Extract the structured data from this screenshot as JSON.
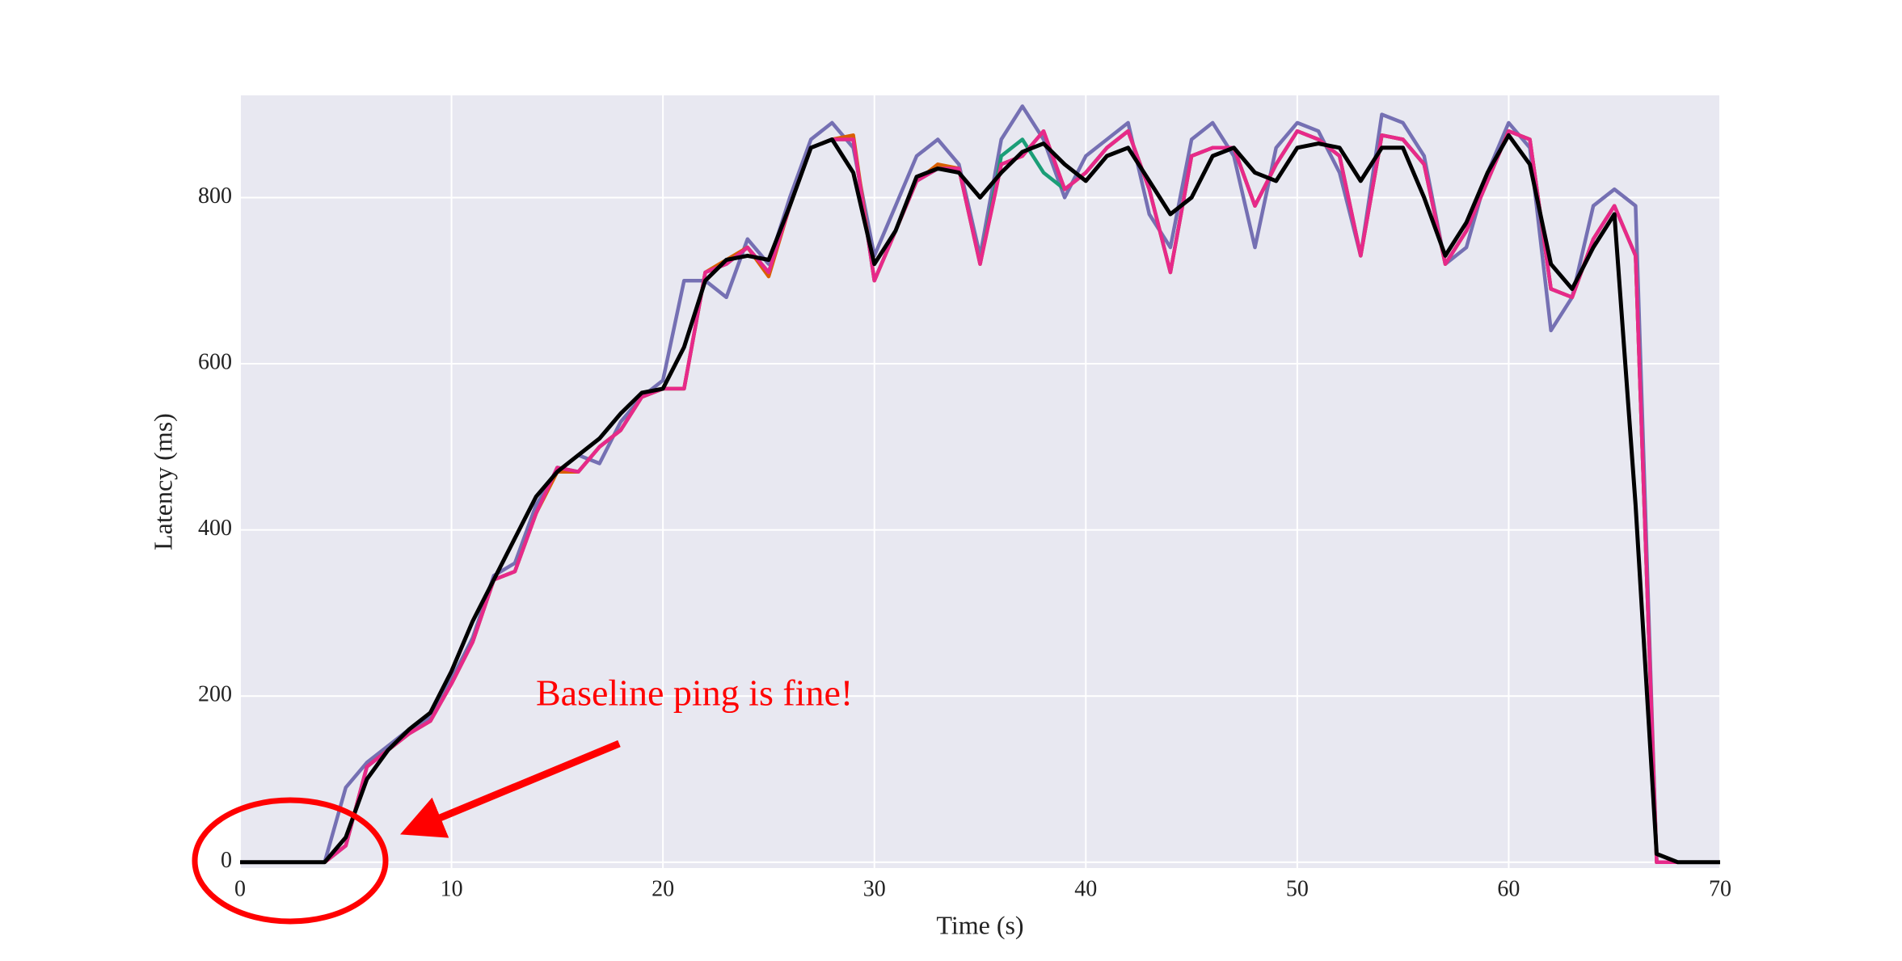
{
  "chart_data": {
    "type": "line",
    "xlabel": "Time (s)",
    "ylabel": "Latency (ms)",
    "annotation": "Baseline ping is fine!",
    "x": [
      0,
      1,
      2,
      3,
      4,
      5,
      6,
      7,
      8,
      9,
      10,
      11,
      12,
      13,
      14,
      15,
      16,
      17,
      18,
      19,
      20,
      21,
      22,
      23,
      24,
      25,
      26,
      27,
      28,
      29,
      30,
      31,
      32,
      33,
      34,
      35,
      36,
      37,
      38,
      39,
      40,
      41,
      42,
      43,
      44,
      45,
      46,
      47,
      48,
      49,
      50,
      51,
      52,
      53,
      54,
      55,
      56,
      57,
      58,
      59,
      60,
      61,
      62,
      63,
      64,
      65,
      66,
      67,
      68,
      69,
      70
    ],
    "series": [
      {
        "color": "#7570b3",
        "values": [
          0,
          0,
          0,
          0,
          0,
          90,
          120,
          140,
          160,
          175,
          220,
          270,
          345,
          360,
          430,
          470,
          490,
          480,
          530,
          560,
          580,
          700,
          700,
          680,
          750,
          720,
          800,
          870,
          890,
          860,
          730,
          790,
          850,
          870,
          840,
          730,
          870,
          910,
          870,
          800,
          850,
          870,
          890,
          780,
          740,
          870,
          890,
          850,
          740,
          860,
          890,
          880,
          830,
          730,
          900,
          890,
          850,
          720,
          740,
          830,
          890,
          860,
          640,
          680,
          790,
          810,
          790,
          0,
          0,
          0,
          0
        ]
      },
      {
        "color": "#1b9e77",
        "values": [
          0,
          0,
          0,
          0,
          0,
          20,
          115,
          135,
          155,
          170,
          215,
          265,
          340,
          350,
          420,
          475,
          470,
          500,
          520,
          560,
          570,
          570,
          710,
          720,
          740,
          710,
          790,
          860,
          870,
          870,
          700,
          760,
          820,
          835,
          835,
          720,
          850,
          870,
          830,
          810,
          830,
          860,
          880,
          810,
          710,
          850,
          860,
          860,
          790,
          840,
          880,
          870,
          850,
          730,
          875,
          870,
          840,
          720,
          760,
          820,
          880,
          870,
          690,
          680,
          750,
          790,
          730,
          0,
          0,
          0,
          0
        ]
      },
      {
        "color": "#d95f02",
        "values": [
          0,
          0,
          0,
          0,
          0,
          20,
          115,
          135,
          155,
          170,
          215,
          265,
          340,
          350,
          420,
          470,
          470,
          500,
          520,
          560,
          570,
          570,
          710,
          725,
          740,
          705,
          790,
          860,
          870,
          875,
          700,
          760,
          820,
          840,
          835,
          720,
          840,
          850,
          880,
          810,
          830,
          860,
          880,
          810,
          710,
          850,
          860,
          860,
          790,
          840,
          880,
          870,
          850,
          730,
          875,
          870,
          840,
          720,
          760,
          820,
          880,
          870,
          690,
          680,
          750,
          790,
          730,
          0,
          0,
          0,
          0
        ]
      },
      {
        "color": "#e7298a",
        "values": [
          0,
          0,
          0,
          0,
          0,
          20,
          115,
          135,
          155,
          170,
          215,
          265,
          340,
          350,
          420,
          475,
          470,
          500,
          520,
          560,
          570,
          570,
          710,
          720,
          740,
          710,
          790,
          860,
          870,
          870,
          700,
          760,
          820,
          835,
          835,
          720,
          840,
          850,
          880,
          810,
          830,
          860,
          880,
          810,
          710,
          850,
          860,
          860,
          790,
          840,
          880,
          870,
          850,
          730,
          875,
          870,
          840,
          720,
          760,
          820,
          880,
          870,
          690,
          680,
          750,
          790,
          730,
          0,
          0,
          0,
          0
        ]
      },
      {
        "color": "#000000",
        "values": [
          0,
          0,
          0,
          0,
          0,
          30,
          100,
          135,
          160,
          180,
          230,
          290,
          340,
          390,
          440,
          470,
          490,
          510,
          540,
          565,
          570,
          620,
          700,
          725,
          730,
          725,
          790,
          860,
          870,
          830,
          720,
          760,
          825,
          835,
          830,
          800,
          830,
          855,
          865,
          840,
          820,
          850,
          860,
          820,
          780,
          800,
          850,
          860,
          830,
          820,
          860,
          865,
          860,
          820,
          860,
          860,
          800,
          730,
          770,
          830,
          875,
          840,
          720,
          690,
          740,
          780,
          430,
          10,
          0,
          0,
          0
        ]
      }
    ],
    "xlim": [
      0,
      70
    ],
    "xticks": [
      0,
      10,
      20,
      30,
      40,
      50,
      60,
      70
    ],
    "ylim": [
      -7,
      923
    ],
    "yticks": [
      0,
      200,
      400,
      600,
      800
    ],
    "grid": true
  }
}
